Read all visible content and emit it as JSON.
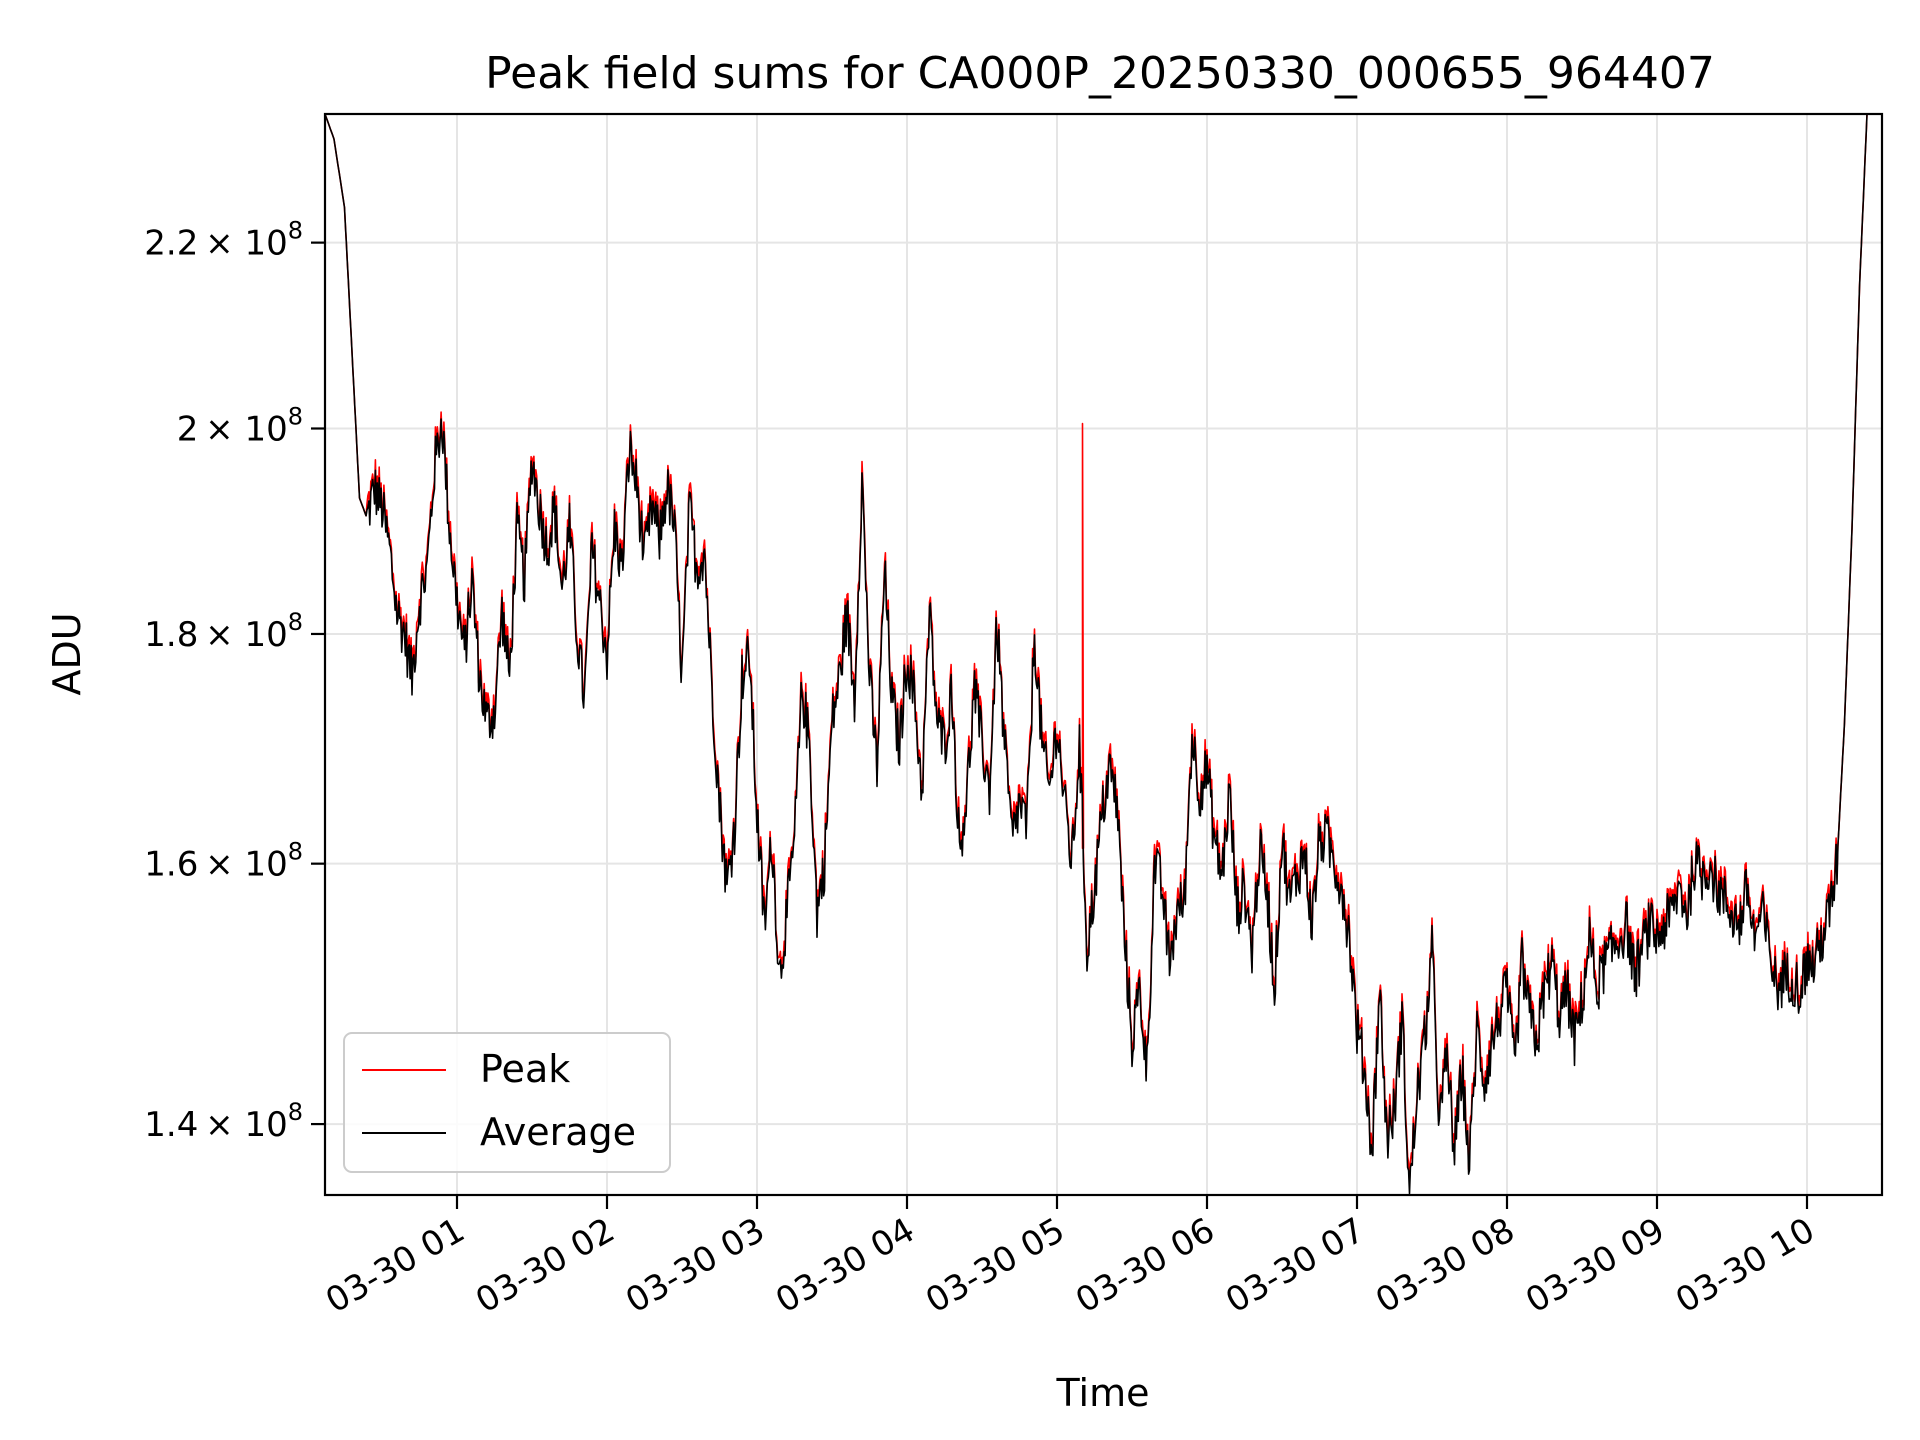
{
  "chart_data": {
    "type": "line",
    "title": "Peak field sums for CA000P_20250330_000655_964407",
    "xlabel": "Time",
    "ylabel": "ADU",
    "y_scale": "log",
    "x_range_hours": [
      0.12,
      10.5
    ],
    "ylim": [
      135000000,
      235000000
    ],
    "x_ticks": [
      {
        "hour": 1,
        "label": "03-30 01"
      },
      {
        "hour": 2,
        "label": "03-30 02"
      },
      {
        "hour": 3,
        "label": "03-30 03"
      },
      {
        "hour": 4,
        "label": "03-30 04"
      },
      {
        "hour": 5,
        "label": "03-30 05"
      },
      {
        "hour": 6,
        "label": "03-30 06"
      },
      {
        "hour": 7,
        "label": "03-30 07"
      },
      {
        "hour": 8,
        "label": "03-30 08"
      },
      {
        "hour": 9,
        "label": "03-30 09"
      },
      {
        "hour": 10,
        "label": "03-30 10"
      }
    ],
    "y_ticks": [
      {
        "value": 140000000,
        "mantissa": "1.4"
      },
      {
        "value": 160000000,
        "mantissa": "1.6"
      },
      {
        "value": 180000000,
        "mantissa": "1.8"
      },
      {
        "value": 200000000,
        "mantissa": "2"
      },
      {
        "value": 220000000,
        "mantissa": "2.2"
      }
    ],
    "y_tick_suffix": "× 10",
    "y_tick_exponent": "8",
    "grid": true,
    "legend_position": "lower-left",
    "series": [
      {
        "name": "Peak",
        "color": "#ff0000"
      },
      {
        "name": "Average",
        "color": "#000000"
      }
    ],
    "average_x_hours": [
      0.12,
      0.18,
      0.25,
      0.3,
      0.35,
      0.4,
      0.45,
      0.5,
      0.55,
      0.6,
      0.65,
      0.7,
      0.75,
      0.8,
      0.85,
      0.9,
      0.95,
      1.0,
      1.05,
      1.1,
      1.15,
      1.2,
      1.25,
      1.3,
      1.35,
      1.4,
      1.45,
      1.5,
      1.55,
      1.6,
      1.65,
      1.7,
      1.75,
      1.8,
      1.85,
      1.9,
      1.95,
      2.0,
      2.05,
      2.1,
      2.15,
      2.2,
      2.25,
      2.3,
      2.35,
      2.4,
      2.45,
      2.5,
      2.55,
      2.6,
      2.65,
      2.7,
      2.75,
      2.8,
      2.85,
      2.9,
      2.95,
      3.0,
      3.05,
      3.1,
      3.15,
      3.2,
      3.25,
      3.3,
      3.35,
      3.4,
      3.45,
      3.5,
      3.55,
      3.6,
      3.65,
      3.7,
      3.75,
      3.8,
      3.85,
      3.9,
      3.95,
      4.0,
      4.05,
      4.1,
      4.15,
      4.2,
      4.25,
      4.3,
      4.35,
      4.4,
      4.45,
      4.5,
      4.55,
      4.6,
      4.65,
      4.7,
      4.75,
      4.8,
      4.85,
      4.9,
      4.95,
      5.0,
      5.05,
      5.1,
      5.15,
      5.2,
      5.25,
      5.3,
      5.35,
      5.4,
      5.45,
      5.5,
      5.55,
      5.6,
      5.65,
      5.7,
      5.75,
      5.8,
      5.85,
      5.9,
      5.95,
      6.0,
      6.05,
      6.1,
      6.15,
      6.2,
      6.25,
      6.3,
      6.35,
      6.4,
      6.45,
      6.5,
      6.55,
      6.6,
      6.65,
      6.7,
      6.75,
      6.8,
      6.85,
      6.9,
      6.95,
      7.0,
      7.05,
      7.1,
      7.15,
      7.2,
      7.25,
      7.3,
      7.35,
      7.4,
      7.45,
      7.5,
      7.55,
      7.6,
      7.65,
      7.7,
      7.75,
      7.8,
      7.85,
      7.9,
      7.95,
      8.0,
      8.05,
      8.1,
      8.15,
      8.2,
      8.25,
      8.3,
      8.35,
      8.4,
      8.45,
      8.5,
      8.55,
      8.6,
      8.65,
      8.7,
      8.75,
      8.8,
      8.85,
      8.9,
      8.95,
      9.0,
      9.05,
      9.1,
      9.15,
      9.2,
      9.25,
      9.3,
      9.35,
      9.4,
      9.45,
      9.5,
      9.55,
      9.6,
      9.65,
      9.7,
      9.75,
      9.8,
      9.85,
      9.9,
      9.95,
      10.0,
      10.05,
      10.1,
      10.15,
      10.2,
      10.25,
      10.3,
      10.35,
      10.4,
      10.45,
      10.5
    ],
    "average_values": [
      235000000,
      232000000,
      224000000,
      208000000,
      193000000,
      191000000,
      194000000,
      192000000,
      188000000,
      182000000,
      180000000,
      176000000,
      183000000,
      186000000,
      196000000,
      201000000,
      190000000,
      183000000,
      178000000,
      185000000,
      176000000,
      172000000,
      173000000,
      182000000,
      176000000,
      190000000,
      185000000,
      197000000,
      192000000,
      188000000,
      192000000,
      184000000,
      190000000,
      180000000,
      174000000,
      188000000,
      183000000,
      178000000,
      190000000,
      186000000,
      198000000,
      194000000,
      187000000,
      192000000,
      189000000,
      194000000,
      190000000,
      176000000,
      192000000,
      186000000,
      188000000,
      175000000,
      165000000,
      158000000,
      163000000,
      176000000,
      178000000,
      164000000,
      155000000,
      162000000,
      151000000,
      156000000,
      162000000,
      175000000,
      170000000,
      156000000,
      160000000,
      172000000,
      176000000,
      182000000,
      174000000,
      195000000,
      176000000,
      168000000,
      186000000,
      174000000,
      170000000,
      178000000,
      174000000,
      166000000,
      182000000,
      172000000,
      170000000,
      175000000,
      161000000,
      166000000,
      175000000,
      170000000,
      166000000,
      181000000,
      170000000,
      162000000,
      165000000,
      163000000,
      180000000,
      170000000,
      166000000,
      172000000,
      165000000,
      160000000,
      170000000,
      153000000,
      158000000,
      164000000,
      168000000,
      165000000,
      154000000,
      146000000,
      150000000,
      144000000,
      160000000,
      158000000,
      152000000,
      156000000,
      157000000,
      171000000,
      166000000,
      168000000,
      162000000,
      159000000,
      166000000,
      156000000,
      158000000,
      153000000,
      161000000,
      158000000,
      150000000,
      162000000,
      157000000,
      159000000,
      161000000,
      155000000,
      162000000,
      162000000,
      160000000,
      158000000,
      154000000,
      147000000,
      144000000,
      138000000,
      150000000,
      139000000,
      141000000,
      148000000,
      135000000,
      142000000,
      146000000,
      153000000,
      140000000,
      145000000,
      138000000,
      144000000,
      137000000,
      147000000,
      143000000,
      146000000,
      148000000,
      150000000,
      144000000,
      152000000,
      148000000,
      146000000,
      150000000,
      152000000,
      148000000,
      150000000,
      146000000,
      149000000,
      154000000,
      150000000,
      152000000,
      153000000,
      154000000,
      155000000,
      151000000,
      153000000,
      155000000,
      154000000,
      155000000,
      156000000,
      158000000,
      156000000,
      160000000,
      159000000,
      160000000,
      158000000,
      157000000,
      156000000,
      155000000,
      158000000,
      154000000,
      156000000,
      153000000,
      150000000,
      151000000,
      151000000,
      150000000,
      152000000,
      152000000,
      154000000,
      156000000,
      160000000,
      172000000,
      190000000,
      215000000,
      235000000
    ],
    "peak_spike": {
      "hour": 5.17,
      "value": 200500000
    }
  }
}
